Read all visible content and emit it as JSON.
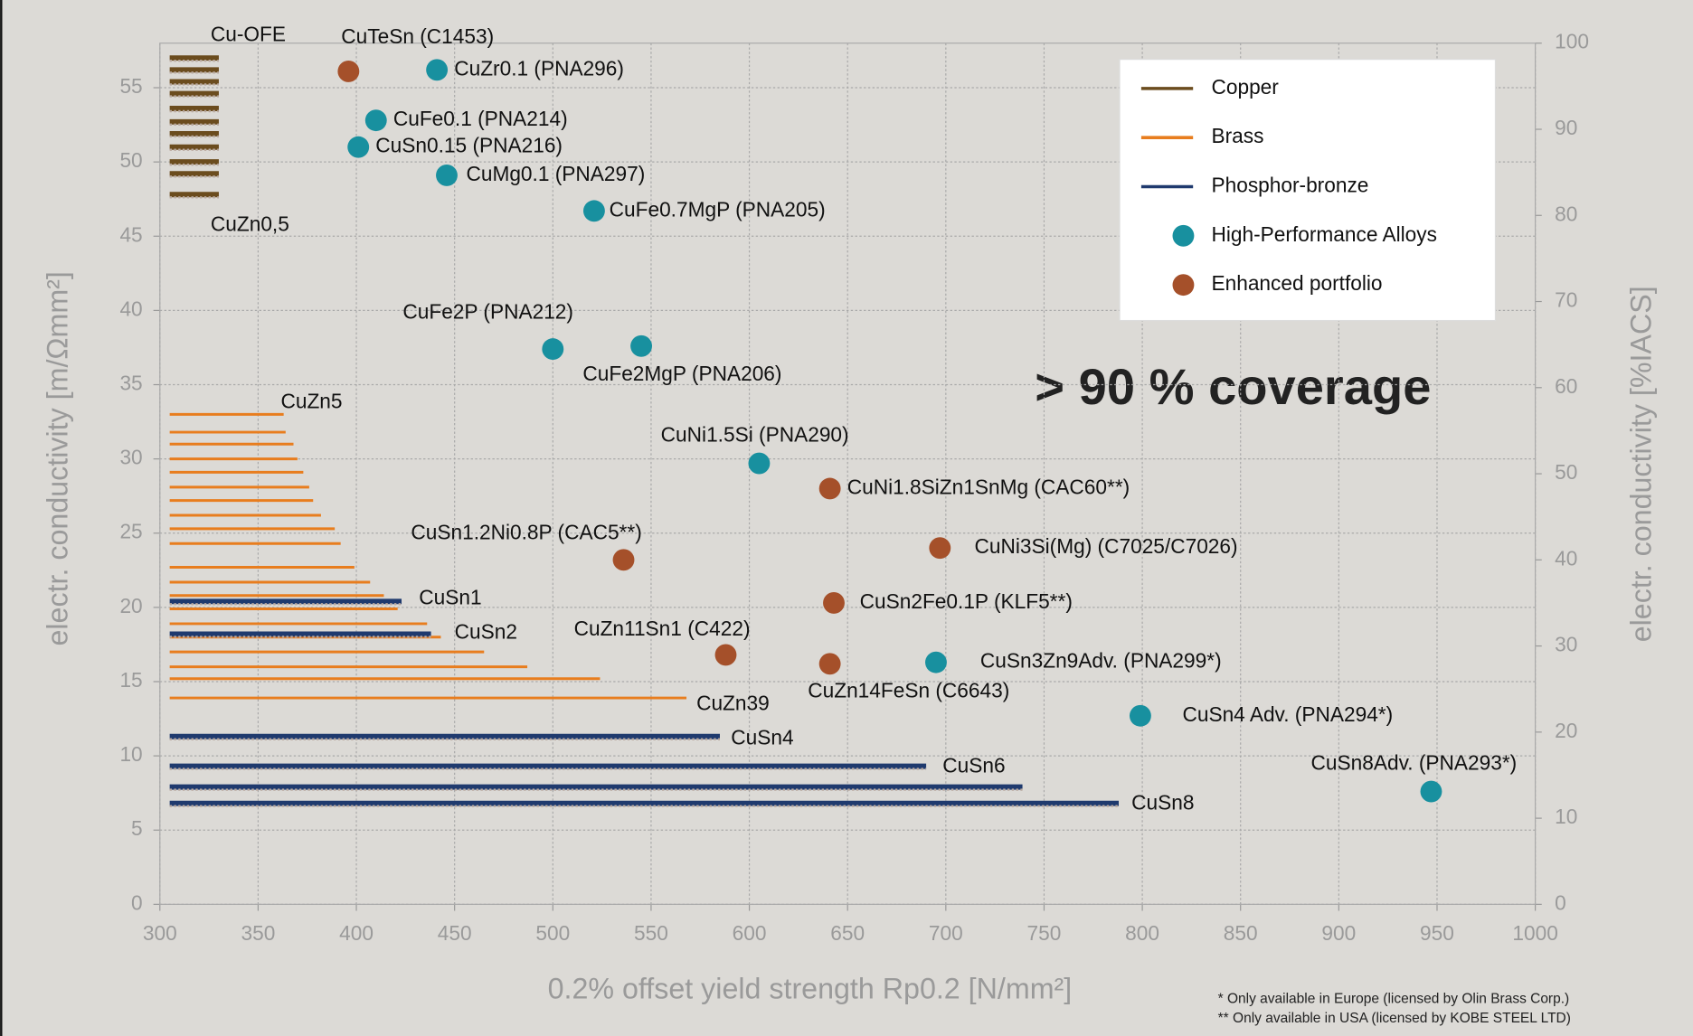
{
  "chart_data": {
    "type": "scatter",
    "xlabel": "0.2% offset yield strength Rp0.2 [N/mm²]",
    "ylabel": "electr. conductivity [m/Ωmm²]",
    "y2label": "electr. conductivity  [%IACS]",
    "annotation": "> 90 % coverage",
    "footnotes": [
      "* Only available in Europe (licensed by Olin Brass Corp.)",
      "** Only available in USA (licensed by KOBE STEEL LTD)"
    ],
    "xlim": [
      300,
      1000
    ],
    "xticks": [
      300,
      350,
      400,
      450,
      500,
      550,
      600,
      650,
      700,
      750,
      800,
      850,
      900,
      950,
      1000
    ],
    "ylim": [
      0,
      58
    ],
    "yticks": [
      0,
      5,
      10,
      15,
      20,
      25,
      30,
      35,
      40,
      45,
      50,
      55
    ],
    "y2lim": [
      0,
      100
    ],
    "y2ticks": [
      0,
      10,
      20,
      30,
      40,
      50,
      60,
      70,
      80,
      90,
      100
    ],
    "grid": true,
    "legend": "upper right",
    "bar_labels": [
      "Cu-OFE",
      "CuZn0,5",
      "CuZn5",
      "CuSn1",
      "CuSn2",
      "CuZn39",
      "CuSn4",
      "CuSn6",
      "CuSn8"
    ],
    "series": [
      {
        "name": "Copper",
        "color": "#6b4c1e",
        "y": [
          57,
          56.2,
          55.4,
          54.6,
          53.6,
          52.7,
          51.9,
          51,
          50,
          49.2,
          47.8
        ],
        "x0": [
          305,
          305,
          305,
          305,
          305,
          305,
          305,
          305,
          305,
          305,
          305
        ],
        "x1": [
          330,
          330,
          330,
          330,
          330,
          330,
          330,
          330,
          330,
          330,
          330
        ]
      },
      {
        "name": "Brass",
        "color": "#e87d1e",
        "y": [
          33,
          31.8,
          31,
          30,
          29.1,
          28.1,
          27.2,
          26.2,
          25.3,
          24.3,
          22.7,
          21.7,
          20.8,
          19.9,
          18.9,
          18,
          17,
          16,
          15.2,
          13.9
        ],
        "x0": [
          305,
          305,
          305,
          305,
          305,
          305,
          305,
          305,
          305,
          305,
          305,
          305,
          305,
          305,
          305,
          305,
          305,
          305,
          305,
          305
        ],
        "x1": [
          363,
          364,
          368,
          370,
          373,
          376,
          378,
          382,
          389,
          392,
          399,
          407,
          414,
          421,
          436,
          443,
          465,
          487,
          524,
          568
        ]
      },
      {
        "name": "Phosphor-bronze",
        "color": "#1f3a6e",
        "y": [
          20.4,
          18.2,
          11.3,
          9.3,
          7.9,
          6.8
        ],
        "x0": [
          305,
          305,
          305,
          305,
          305,
          305
        ],
        "x1": [
          423,
          438,
          585,
          690,
          739,
          788
        ]
      },
      {
        "name": "High-Performance Alloys",
        "color": "#18909f",
        "x": [
          441,
          410,
          401,
          446,
          521,
          500,
          545,
          605,
          695,
          799,
          947
        ],
        "values": [
          56.2,
          52.8,
          51,
          49.1,
          46.7,
          37.4,
          37.6,
          29.7,
          16.3,
          12.7,
          7.6
        ],
        "labels": [
          "CuZr0.1 (PNA296)",
          "CuFe0.1 (PNA214)",
          "CuSn0.15 (PNA216)",
          "CuMg0.1 (PNA297)",
          "CuFe0.7MgP (PNA205)",
          "CuFe2P (PNA212)",
          "CuFe2MgP (PNA206)",
          "CuNi1.5Si (PNA290)",
          "CuSn3Zn9Adv. (PNA299*)",
          "CuSn4 Adv. (PNA294*)",
          "CuSn8Adv. (PNA293*)"
        ]
      },
      {
        "name": "Enhanced portfolio",
        "color": "#a5502a",
        "x": [
          396,
          641,
          536,
          697,
          643,
          588,
          641
        ],
        "values": [
          56.1,
          28,
          23.2,
          24,
          20.3,
          16.8,
          16.2
        ],
        "labels": [
          "CuTeSn (C1453)",
          "CuNi1.8SiZn1SnMg (CAC60**)",
          "CuSn1.2Ni0.8P (CAC5**)",
          "CuNi3Si(Mg) (C7025/C7026)",
          "CuSn2Fe0.1P (KLF5**)",
          "CuZn11Sn1 (C422)",
          "CuZn14FeSn (C6643)"
        ]
      }
    ]
  }
}
